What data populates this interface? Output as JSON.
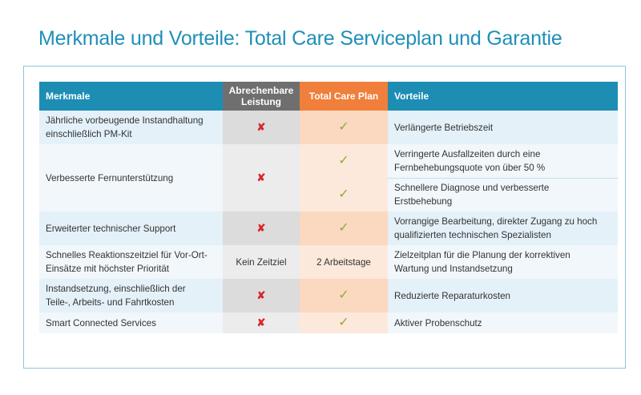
{
  "title": "Merkmale und Vorteile: Total Care Serviceplan und Garantie",
  "headers": {
    "merkmale": "Merkmale",
    "abrechenbare_line1": "Abrechenbare",
    "abrechenbare_line2": "Leistung",
    "total_care": "Total Care Plan",
    "vorteile": "Vorteile"
  },
  "symbols": {
    "cross": "✘",
    "check": "✓"
  },
  "rows": [
    {
      "merkmal_l1": "Jährliche vorbeugende Instandhaltung",
      "merkmal_l2": "einschließlich PM-Kit",
      "abrechenbar": "cross",
      "total_care": "check",
      "vorteil_l1": "Verlängerte Betriebszeit",
      "vorteil_l2": ""
    },
    {
      "merkmal_l1": "Verbesserte Fernunterstützung",
      "merkmal_l2": "",
      "abrechenbar": "cross",
      "total_care_a": "check",
      "vorteil_a_l1": "Verringerte Ausfallzeiten durch eine",
      "vorteil_a_l2": "Fernbehebungsquote von über 50 %",
      "total_care_b": "check",
      "vorteil_b_l1": "Schnellere Diagnose und verbesserte",
      "vorteil_b_l2": "Erstbehebung"
    },
    {
      "merkmal_l1": "Erweiterter technischer Support",
      "merkmal_l2": "",
      "abrechenbar": "cross",
      "total_care": "check",
      "vorteil_l1": "Vorrangige Bearbeitung, direkter Zugang zu hoch",
      "vorteil_l2": "qualifizierten technischen Spezialisten"
    },
    {
      "merkmal_l1": "Schnelles Reaktionszeitziel für Vor-Ort-",
      "merkmal_l2": "Einsätze mit höchster Priorität",
      "abrechenbar_text": "Kein Zeitziel",
      "total_care_text": "2 Arbeitstage",
      "vorteil_l1": "Zielzeitplan für die Planung der korrektiven",
      "vorteil_l2": "Wartung und Instandsetzung"
    },
    {
      "merkmal_l1": "Instandsetzung, einschließlich der",
      "merkmal_l2": "Teile-, Arbeits- und Fahrtkosten",
      "abrechenbar": "cross",
      "total_care": "check",
      "vorteil_l1": "Reduzierte Reparaturkosten",
      "vorteil_l2": ""
    },
    {
      "merkmal_l1": "Smart Connected Services",
      "merkmal_l2": "",
      "abrechenbar": "cross",
      "total_care": "check",
      "vorteil_l1": "Aktiver Probenschutz",
      "vorteil_l2": ""
    }
  ]
}
